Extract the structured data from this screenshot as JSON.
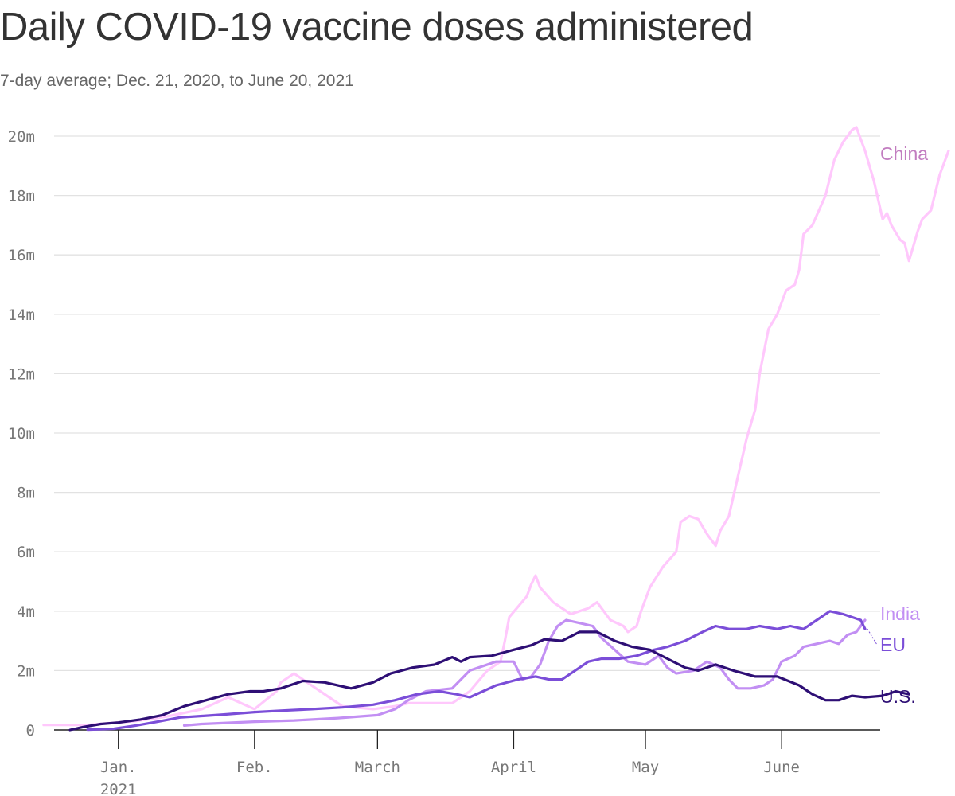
{
  "title": "Daily COVID-19 vaccine doses administered",
  "subtitle": "7-day average; Dec. 21, 2020, to June 20, 2021",
  "chart_data": {
    "type": "line",
    "x_start": "2020-12-21",
    "x_end": "2021-06-20",
    "ylim": [
      0,
      20000000
    ],
    "yticks": [
      0,
      2000000,
      4000000,
      6000000,
      8000000,
      10000000,
      12000000,
      14000000,
      16000000,
      18000000,
      20000000
    ],
    "ytick_labels": [
      "0",
      "2m",
      "4m",
      "6m",
      "8m",
      "10m",
      "12m",
      "14m",
      "16m",
      "18m",
      "20m"
    ],
    "xticks": [
      {
        "date": "2021-01-01",
        "label": "Jan.",
        "sublabel": "2021"
      },
      {
        "date": "2021-02-01",
        "label": "Feb.",
        "sublabel": ""
      },
      {
        "date": "2021-03-01",
        "label": "March",
        "sublabel": ""
      },
      {
        "date": "2021-04-01",
        "label": "April",
        "sublabel": ""
      },
      {
        "date": "2021-05-01",
        "label": "May",
        "sublabel": ""
      },
      {
        "date": "2021-06-01",
        "label": "June",
        "sublabel": ""
      }
    ],
    "grid": true,
    "series": [
      {
        "name": "China",
        "color": "#ffc8fc",
        "label_color": "#c27dc0",
        "points": [
          [
            "2020-12-15",
            170000
          ],
          [
            "2020-12-25",
            170000
          ],
          [
            "2021-01-05",
            300000
          ],
          [
            "2021-01-12",
            450000
          ],
          [
            "2021-01-20",
            700000
          ],
          [
            "2021-01-26",
            1100000
          ],
          [
            "2021-02-01",
            700000
          ],
          [
            "2021-02-06",
            1300000
          ],
          [
            "2021-02-07",
            1600000
          ],
          [
            "2021-02-10",
            1900000
          ],
          [
            "2021-02-13",
            1600000
          ],
          [
            "2021-02-18",
            1100000
          ],
          [
            "2021-02-21",
            800000
          ],
          [
            "2021-02-28",
            700000
          ],
          [
            "2021-03-05",
            800000
          ],
          [
            "2021-03-08",
            900000
          ],
          [
            "2021-03-13",
            900000
          ],
          [
            "2021-03-18",
            900000
          ],
          [
            "2021-03-22",
            1300000
          ],
          [
            "2021-03-26",
            2000000
          ],
          [
            "2021-03-29",
            2300000
          ],
          [
            "2021-03-30",
            3000000
          ],
          [
            "2021-03-31",
            3800000
          ],
          [
            "2021-04-04",
            4500000
          ],
          [
            "2021-04-05",
            4900000
          ],
          [
            "2021-04-06",
            5200000
          ],
          [
            "2021-04-07",
            4800000
          ],
          [
            "2021-04-10",
            4300000
          ],
          [
            "2021-04-14",
            3900000
          ],
          [
            "2021-04-16",
            4000000
          ],
          [
            "2021-04-18",
            4100000
          ],
          [
            "2021-04-20",
            4300000
          ],
          [
            "2021-04-23",
            3700000
          ],
          [
            "2021-04-26",
            3500000
          ],
          [
            "2021-04-27",
            3300000
          ],
          [
            "2021-04-29",
            3500000
          ],
          [
            "2021-04-30",
            4000000
          ],
          [
            "2021-05-02",
            4800000
          ],
          [
            "2021-05-05",
            5500000
          ],
          [
            "2021-05-08",
            6000000
          ],
          [
            "2021-05-09",
            7000000
          ],
          [
            "2021-05-11",
            7200000
          ],
          [
            "2021-05-13",
            7100000
          ],
          [
            "2021-05-15",
            6600000
          ],
          [
            "2021-05-17",
            6200000
          ],
          [
            "2021-05-18",
            6700000
          ],
          [
            "2021-05-20",
            7200000
          ],
          [
            "2021-05-22",
            8500000
          ],
          [
            "2021-05-24",
            9800000
          ],
          [
            "2021-05-26",
            10800000
          ],
          [
            "2021-05-27",
            12000000
          ],
          [
            "2021-05-29",
            13500000
          ],
          [
            "2021-05-31",
            14000000
          ],
          [
            "2021-06-02",
            14800000
          ],
          [
            "2021-06-04",
            15000000
          ],
          [
            "2021-06-05",
            15500000
          ],
          [
            "2021-06-06",
            16700000
          ],
          [
            "2021-06-08",
            17000000
          ],
          [
            "2021-06-11",
            18000000
          ],
          [
            "2021-06-13",
            19200000
          ],
          [
            "2021-06-15",
            19800000
          ],
          [
            "2021-06-17",
            20200000
          ],
          [
            "2021-06-18",
            20300000
          ],
          [
            "2021-06-20",
            19500000
          ],
          [
            "2021-06-22",
            18500000
          ],
          [
            "2021-06-24",
            17200000
          ],
          [
            "2021-06-25",
            17400000
          ],
          [
            "2021-06-26",
            17000000
          ],
          [
            "2021-06-28",
            16500000
          ],
          [
            "2021-06-29",
            16400000
          ],
          [
            "2021-06-30",
            15800000
          ],
          [
            "2021-07-02",
            16800000
          ],
          [
            "2021-07-03",
            17200000
          ],
          [
            "2021-07-05",
            17500000
          ],
          [
            "2021-07-07",
            18700000
          ],
          [
            "2021-07-09",
            19500000
          ]
        ]
      },
      {
        "name": "India",
        "color": "#c28ff3",
        "label_color": "#c28ff3",
        "points": [
          [
            "2021-01-16",
            150000
          ],
          [
            "2021-01-20",
            200000
          ],
          [
            "2021-02-01",
            280000
          ],
          [
            "2021-02-10",
            320000
          ],
          [
            "2021-02-20",
            400000
          ],
          [
            "2021-03-01",
            500000
          ],
          [
            "2021-03-05",
            700000
          ],
          [
            "2021-03-08",
            1000000
          ],
          [
            "2021-03-12",
            1300000
          ],
          [
            "2021-03-18",
            1400000
          ],
          [
            "2021-03-22",
            2000000
          ],
          [
            "2021-03-28",
            2300000
          ],
          [
            "2021-04-01",
            2300000
          ],
          [
            "2021-04-03",
            1700000
          ],
          [
            "2021-04-05",
            1800000
          ],
          [
            "2021-04-07",
            2200000
          ],
          [
            "2021-04-09",
            3000000
          ],
          [
            "2021-04-11",
            3500000
          ],
          [
            "2021-04-13",
            3700000
          ],
          [
            "2021-04-16",
            3600000
          ],
          [
            "2021-04-19",
            3500000
          ],
          [
            "2021-04-21",
            3100000
          ],
          [
            "2021-04-24",
            2700000
          ],
          [
            "2021-04-27",
            2300000
          ],
          [
            "2021-05-01",
            2200000
          ],
          [
            "2021-05-04",
            2500000
          ],
          [
            "2021-05-06",
            2100000
          ],
          [
            "2021-05-08",
            1900000
          ],
          [
            "2021-05-12",
            2000000
          ],
          [
            "2021-05-15",
            2300000
          ],
          [
            "2021-05-18",
            2100000
          ],
          [
            "2021-05-20",
            1700000
          ],
          [
            "2021-05-22",
            1400000
          ],
          [
            "2021-05-25",
            1400000
          ],
          [
            "2021-05-28",
            1500000
          ],
          [
            "2021-05-30",
            1700000
          ],
          [
            "2021-06-01",
            2300000
          ],
          [
            "2021-06-04",
            2500000
          ],
          [
            "2021-06-06",
            2800000
          ],
          [
            "2021-06-09",
            2900000
          ],
          [
            "2021-06-12",
            3000000
          ],
          [
            "2021-06-14",
            2900000
          ],
          [
            "2021-06-16",
            3200000
          ],
          [
            "2021-06-18",
            3300000
          ],
          [
            "2021-06-20",
            3700000
          ]
        ]
      },
      {
        "name": "EU",
        "color": "#7b4ed8",
        "label_color": "#7b4ed8",
        "points": [
          [
            "2020-12-25",
            10000
          ],
          [
            "2020-12-31",
            40000
          ],
          [
            "2021-01-05",
            150000
          ],
          [
            "2021-01-10",
            280000
          ],
          [
            "2021-01-15",
            420000
          ],
          [
            "2021-01-20",
            470000
          ],
          [
            "2021-01-25",
            520000
          ],
          [
            "2021-02-01",
            600000
          ],
          [
            "2021-02-07",
            650000
          ],
          [
            "2021-02-14",
            700000
          ],
          [
            "2021-02-21",
            760000
          ],
          [
            "2021-02-28",
            850000
          ],
          [
            "2021-03-05",
            1000000
          ],
          [
            "2021-03-10",
            1200000
          ],
          [
            "2021-03-15",
            1300000
          ],
          [
            "2021-03-19",
            1200000
          ],
          [
            "2021-03-22",
            1100000
          ],
          [
            "2021-03-25",
            1300000
          ],
          [
            "2021-03-28",
            1500000
          ],
          [
            "2021-04-02",
            1700000
          ],
          [
            "2021-04-06",
            1800000
          ],
          [
            "2021-04-09",
            1700000
          ],
          [
            "2021-04-12",
            1700000
          ],
          [
            "2021-04-15",
            2000000
          ],
          [
            "2021-04-18",
            2300000
          ],
          [
            "2021-04-21",
            2400000
          ],
          [
            "2021-04-25",
            2400000
          ],
          [
            "2021-04-29",
            2500000
          ],
          [
            "2021-05-03",
            2700000
          ],
          [
            "2021-05-06",
            2800000
          ],
          [
            "2021-05-10",
            3000000
          ],
          [
            "2021-05-14",
            3300000
          ],
          [
            "2021-05-17",
            3500000
          ],
          [
            "2021-05-20",
            3400000
          ],
          [
            "2021-05-24",
            3400000
          ],
          [
            "2021-05-27",
            3500000
          ],
          [
            "2021-05-31",
            3400000
          ],
          [
            "2021-06-03",
            3500000
          ],
          [
            "2021-06-06",
            3400000
          ],
          [
            "2021-06-09",
            3700000
          ],
          [
            "2021-06-12",
            4000000
          ],
          [
            "2021-06-15",
            3900000
          ],
          [
            "2021-06-17",
            3800000
          ],
          [
            "2021-06-19",
            3700000
          ],
          [
            "2021-06-20",
            3400000
          ]
        ]
      },
      {
        "name": "U.S.",
        "color": "#2e0f75",
        "label_color": "#2e0f75",
        "points": [
          [
            "2020-12-21",
            0
          ],
          [
            "2020-12-24",
            100000
          ],
          [
            "2020-12-28",
            200000
          ],
          [
            "2021-01-01",
            250000
          ],
          [
            "2021-01-06",
            350000
          ],
          [
            "2021-01-11",
            500000
          ],
          [
            "2021-01-16",
            800000
          ],
          [
            "2021-01-21",
            1000000
          ],
          [
            "2021-01-26",
            1200000
          ],
          [
            "2021-01-31",
            1300000
          ],
          [
            "2021-02-03",
            1300000
          ],
          [
            "2021-02-07",
            1400000
          ],
          [
            "2021-02-12",
            1650000
          ],
          [
            "2021-02-17",
            1600000
          ],
          [
            "2021-02-23",
            1400000
          ],
          [
            "2021-02-28",
            1600000
          ],
          [
            "2021-03-04",
            1900000
          ],
          [
            "2021-03-09",
            2100000
          ],
          [
            "2021-03-14",
            2200000
          ],
          [
            "2021-03-18",
            2450000
          ],
          [
            "2021-03-20",
            2300000
          ],
          [
            "2021-03-22",
            2450000
          ],
          [
            "2021-03-27",
            2500000
          ],
          [
            "2021-04-01",
            2700000
          ],
          [
            "2021-04-05",
            2850000
          ],
          [
            "2021-04-08",
            3050000
          ],
          [
            "2021-04-12",
            3000000
          ],
          [
            "2021-04-16",
            3300000
          ],
          [
            "2021-04-20",
            3300000
          ],
          [
            "2021-04-24",
            3000000
          ],
          [
            "2021-04-28",
            2800000
          ],
          [
            "2021-05-02",
            2700000
          ],
          [
            "2021-05-06",
            2400000
          ],
          [
            "2021-05-10",
            2100000
          ],
          [
            "2021-05-13",
            2000000
          ],
          [
            "2021-05-17",
            2200000
          ],
          [
            "2021-05-21",
            2000000
          ],
          [
            "2021-05-26",
            1800000
          ],
          [
            "2021-05-31",
            1800000
          ],
          [
            "2021-06-05",
            1500000
          ],
          [
            "2021-06-08",
            1200000
          ],
          [
            "2021-06-11",
            1000000
          ],
          [
            "2021-06-14",
            1000000
          ],
          [
            "2021-06-17",
            1150000
          ],
          [
            "2021-06-20",
            1100000
          ],
          [
            "2021-06-24",
            1150000
          ],
          [
            "2021-06-27",
            1300000
          ],
          [
            "2021-06-30",
            1200000
          ]
        ]
      }
    ]
  }
}
